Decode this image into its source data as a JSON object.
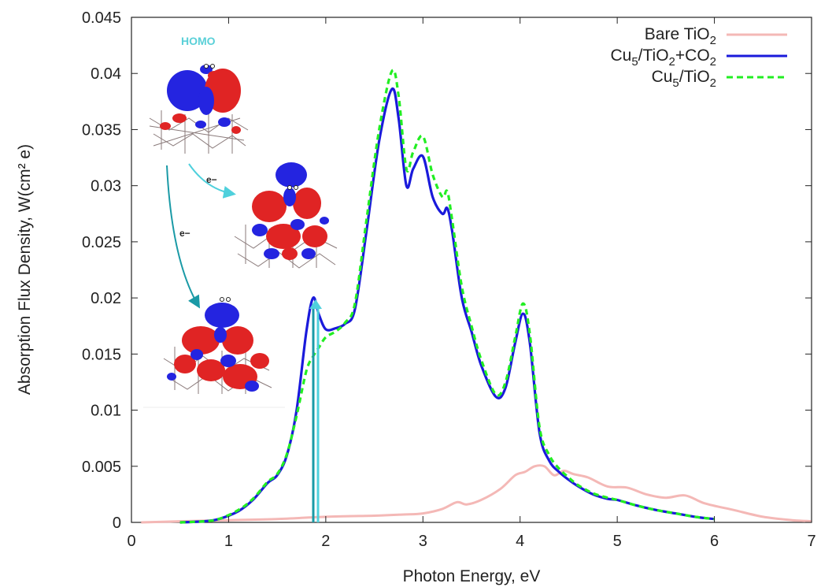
{
  "colors": {
    "bare": "#f4b8b6",
    "cu5_co2": "#1a1adb",
    "cu5": "#22ee22",
    "arrow_cyan": "#4fd0dc",
    "arrow_teal": "#1a9aa6",
    "orbital_blue": "#2424e0",
    "orbital_red": "#e02424"
  },
  "inset": {
    "homo_label": "HOMO",
    "electron_label_1": "e−",
    "electron_label_2": "e−"
  },
  "chart_data": {
    "type": "line",
    "title": "",
    "xlabel": "Photon Energy, eV",
    "ylabel": "Absorption Flux Density, W(cm² e)",
    "xlim": [
      0,
      7
    ],
    "ylim": [
      0,
      0.045
    ],
    "xticks": [
      "0",
      "1",
      "2",
      "3",
      "4",
      "5",
      "6",
      "7"
    ],
    "yticks": [
      "0",
      "0.005",
      "0.01",
      "0.015",
      "0.02",
      "0.025",
      "0.03",
      "0.035",
      "0.04",
      "0.045"
    ],
    "grid": false,
    "legend_position": "top-right",
    "series": [
      {
        "name": "Bare TiO2",
        "style": "solid",
        "x": [
          0.1,
          0.5,
          1.0,
          1.5,
          2.0,
          2.5,
          2.8,
          3.0,
          3.2,
          3.35,
          3.45,
          3.6,
          3.8,
          3.95,
          4.05,
          4.15,
          4.25,
          4.35,
          4.45,
          4.55,
          4.7,
          4.9,
          5.1,
          5.3,
          5.5,
          5.7,
          5.9,
          6.2,
          6.5,
          6.8,
          7.0
        ],
        "y": [
          0.0,
          0.0001,
          0.0002,
          0.0003,
          0.0005,
          0.0006,
          0.0007,
          0.0008,
          0.0012,
          0.0018,
          0.0016,
          0.002,
          0.003,
          0.0042,
          0.0045,
          0.005,
          0.005,
          0.0042,
          0.0046,
          0.0043,
          0.004,
          0.0032,
          0.0031,
          0.0025,
          0.0022,
          0.0024,
          0.0017,
          0.0011,
          0.0005,
          0.0002,
          0.0001
        ]
      },
      {
        "name": "Cu5/TiO2+CO2",
        "style": "solid",
        "x": [
          0.5,
          0.75,
          0.9,
          1.1,
          1.25,
          1.4,
          1.5,
          1.6,
          1.7,
          1.8,
          1.87,
          1.93,
          2.0,
          2.1,
          2.2,
          2.3,
          2.42,
          2.55,
          2.68,
          2.75,
          2.83,
          2.9,
          3.0,
          3.1,
          3.2,
          3.25,
          3.3,
          3.4,
          3.5,
          3.6,
          3.75,
          3.85,
          3.95,
          4.03,
          4.1,
          4.2,
          4.3,
          4.4,
          4.5,
          4.6,
          4.75,
          4.9,
          5.0,
          5.2,
          5.4,
          5.6,
          5.8,
          6.0
        ],
        "y": [
          0.0,
          0.0001,
          0.0003,
          0.001,
          0.002,
          0.0035,
          0.0042,
          0.006,
          0.01,
          0.017,
          0.02,
          0.0185,
          0.0172,
          0.0173,
          0.0177,
          0.019,
          0.026,
          0.034,
          0.0386,
          0.036,
          0.03,
          0.0315,
          0.0326,
          0.029,
          0.0275,
          0.028,
          0.026,
          0.02,
          0.017,
          0.014,
          0.0112,
          0.012,
          0.016,
          0.0186,
          0.016,
          0.008,
          0.0055,
          0.0045,
          0.0038,
          0.0032,
          0.0025,
          0.0021,
          0.002,
          0.0015,
          0.0011,
          0.0008,
          0.0005,
          0.0003
        ]
      },
      {
        "name": "Cu5/TiO2",
        "style": "dashed",
        "x": [
          0.5,
          0.75,
          0.9,
          1.1,
          1.25,
          1.4,
          1.5,
          1.6,
          1.7,
          1.8,
          1.87,
          1.93,
          2.0,
          2.1,
          2.2,
          2.3,
          2.42,
          2.55,
          2.68,
          2.75,
          2.83,
          2.9,
          3.0,
          3.1,
          3.2,
          3.25,
          3.3,
          3.4,
          3.5,
          3.6,
          3.75,
          3.85,
          3.95,
          4.03,
          4.1,
          4.2,
          4.3,
          4.4,
          4.5,
          4.6,
          4.75,
          4.9,
          5.0,
          5.2,
          5.4,
          5.6,
          5.8,
          6.0
        ],
        "y": [
          0.0,
          0.0001,
          0.0003,
          0.0011,
          0.0021,
          0.0036,
          0.0043,
          0.0061,
          0.0095,
          0.0135,
          0.0148,
          0.0156,
          0.0165,
          0.017,
          0.0178,
          0.0195,
          0.027,
          0.035,
          0.0402,
          0.038,
          0.0315,
          0.033,
          0.0344,
          0.031,
          0.029,
          0.0295,
          0.027,
          0.021,
          0.0175,
          0.0145,
          0.0114,
          0.0125,
          0.0165,
          0.0195,
          0.0168,
          0.0085,
          0.006,
          0.0048,
          0.004,
          0.0033,
          0.0026,
          0.0022,
          0.002,
          0.0015,
          0.0011,
          0.0008,
          0.0005,
          0.0003
        ]
      }
    ]
  },
  "legend": {
    "bare": {
      "base": "Bare TiO",
      "sub": "2"
    },
    "cu5_co2": {
      "base": "Cu",
      "sub1": "5",
      "mid": "/TiO",
      "sub2": "2",
      "tail": "+CO",
      "sub3": "2"
    },
    "cu5": {
      "base": "Cu",
      "sub1": "5",
      "mid": "/TiO",
      "sub2": "2"
    }
  }
}
